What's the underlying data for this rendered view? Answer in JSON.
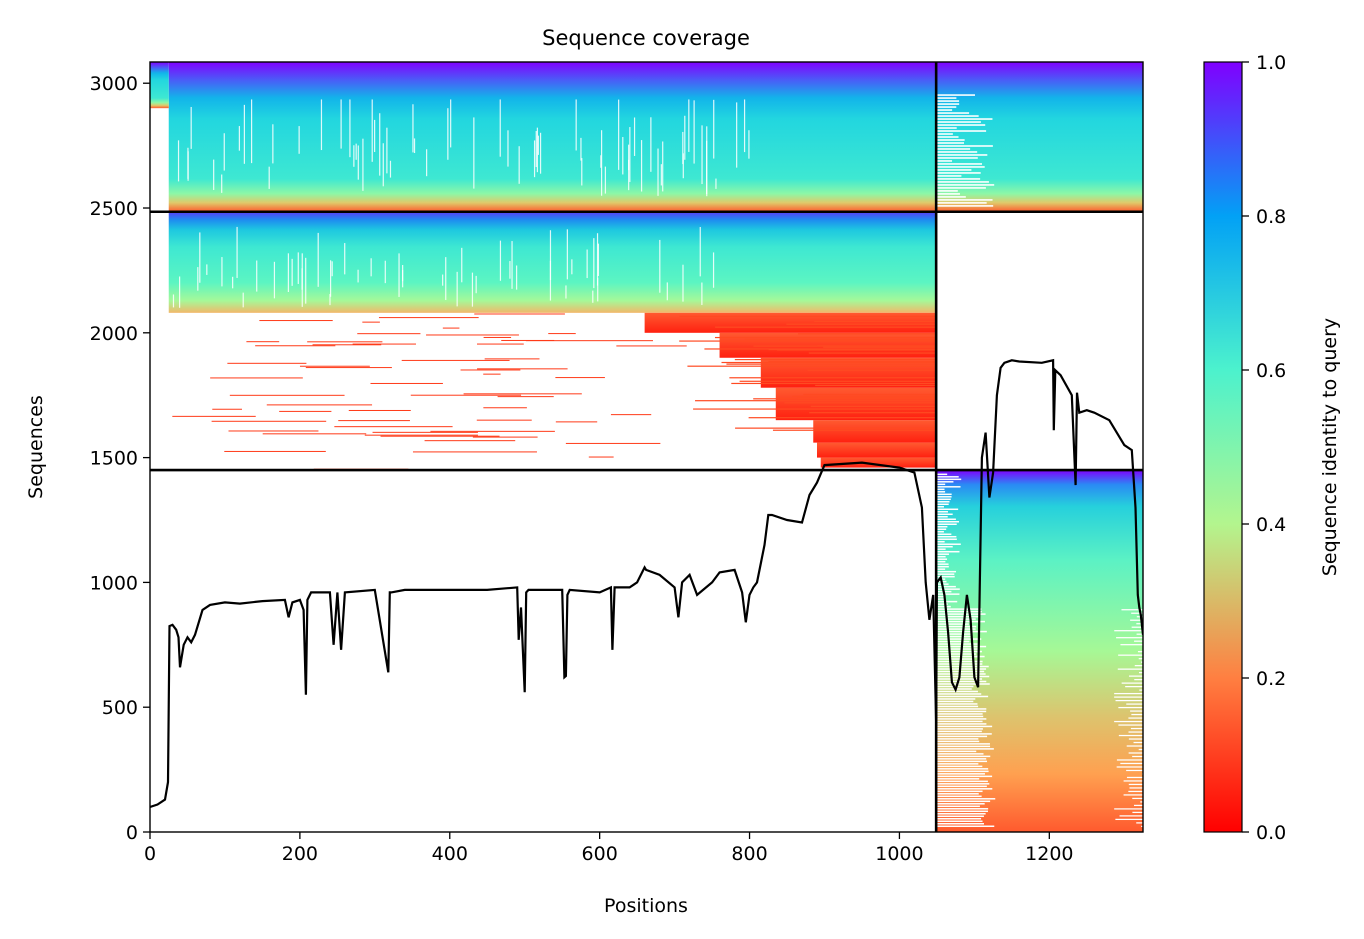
{
  "chart_data": {
    "type": "heatmap",
    "title": "Sequence coverage",
    "xlabel": "Positions",
    "ylabel": "Sequences",
    "xlim": [
      0,
      1325
    ],
    "ylim": [
      0,
      3085
    ],
    "xticks": [
      0,
      200,
      400,
      600,
      800,
      1000,
      1200
    ],
    "yticks": [
      0,
      500,
      1000,
      1500,
      2000,
      2500,
      3000
    ],
    "grid": false,
    "colorbar": {
      "label": "Sequence identity to query",
      "range": [
        0.0,
        1.0
      ],
      "ticks": [
        "0.0",
        "0.2",
        "0.4",
        "0.6",
        "0.8",
        "1.0"
      ],
      "colormap": "rainbow",
      "colors": [
        "#ff0000",
        "#ff7f41",
        "#b3f58e",
        "#4cf2cd",
        "#02a1f5",
        "#8000ff"
      ]
    },
    "chain_boundaries": {
      "positions": [
        1049
      ],
      "sequences": [
        1450,
        2485
      ]
    },
    "coverage_line": {
      "color": "#000000",
      "x": [
        0,
        10,
        20,
        24,
        26,
        30,
        35,
        38,
        40,
        45,
        50,
        55,
        60,
        70,
        80,
        100,
        120,
        150,
        180,
        185,
        190,
        200,
        205,
        208,
        210,
        215,
        240,
        245,
        250,
        255,
        260,
        300,
        318,
        320,
        322,
        340,
        400,
        450,
        490,
        492,
        495,
        500,
        502,
        505,
        550,
        553,
        555,
        557,
        560,
        600,
        615,
        617,
        620,
        640,
        650,
        660,
        662,
        680,
        700,
        705,
        710,
        720,
        730,
        750,
        760,
        780,
        790,
        795,
        800,
        805,
        810,
        820,
        825,
        830,
        850,
        870,
        880,
        890,
        900,
        950,
        1000,
        1020,
        1030,
        1035,
        1040,
        1045,
        1049,
        1050,
        1055,
        1060,
        1065,
        1070,
        1075,
        1080,
        1085,
        1090,
        1095,
        1100,
        1105,
        1110,
        1115,
        1120,
        1125,
        1130,
        1135,
        1140,
        1150,
        1160,
        1190,
        1205,
        1206,
        1208,
        1215,
        1230,
        1235,
        1237,
        1240,
        1250,
        1260,
        1280,
        1300,
        1310,
        1315,
        1318,
        1320,
        1322,
        1325
      ],
      "y": [
        100,
        110,
        130,
        200,
        825,
        830,
        810,
        780,
        660,
        750,
        780,
        760,
        790,
        890,
        910,
        920,
        915,
        925,
        930,
        860,
        920,
        930,
        890,
        550,
        930,
        960,
        960,
        750,
        960,
        730,
        960,
        970,
        640,
        960,
        960,
        970,
        970,
        970,
        980,
        770,
        900,
        560,
        960,
        970,
        970,
        620,
        625,
        950,
        970,
        960,
        980,
        730,
        980,
        980,
        1000,
        1060,
        1050,
        1030,
        980,
        860,
        1000,
        1030,
        950,
        1000,
        1040,
        1050,
        960,
        840,
        950,
        980,
        1000,
        1150,
        1270,
        1270,
        1250,
        1240,
        1350,
        1400,
        1470,
        1480,
        1460,
        1440,
        1300,
        1000,
        850,
        950,
        430,
        1000,
        1020,
        950,
        800,
        600,
        570,
        620,
        800,
        950,
        850,
        620,
        580,
        1500,
        1600,
        1340,
        1440,
        1750,
        1860,
        1880,
        1890,
        1885,
        1880,
        1890,
        1610,
        1850,
        1830,
        1750,
        1390,
        1760,
        1680,
        1690,
        1680,
        1650,
        1550,
        1530,
        1300,
        950,
        900,
        870,
        790
      ]
    }
  }
}
